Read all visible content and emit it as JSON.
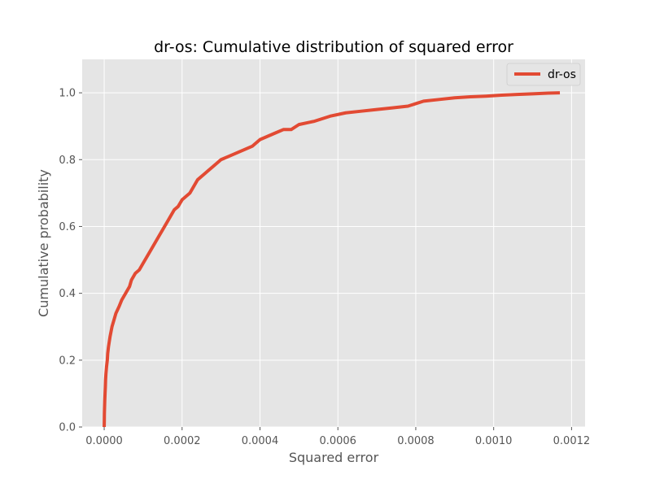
{
  "chart_data": {
    "type": "line",
    "title": "dr-os: Cumulative distribution of squared error",
    "xlabel": "Squared error",
    "ylabel": "Cumulative probability",
    "xlim": [
      -5.65e-05,
      0.0012347
    ],
    "ylim": [
      0.0,
      1.1
    ],
    "x_ticks": [
      "0.0000",
      "0.0002",
      "0.0004",
      "0.0006",
      "0.0008",
      "0.0010",
      "0.0012"
    ],
    "x_tick_values": [
      0.0,
      0.0002,
      0.0004,
      0.0006,
      0.0008,
      0.001,
      0.0012
    ],
    "y_ticks": [
      "0.0",
      "0.2",
      "0.4",
      "0.6",
      "0.8",
      "1.0"
    ],
    "y_tick_values": [
      0.0,
      0.2,
      0.4,
      0.6,
      0.8,
      1.0
    ],
    "grid": true,
    "legend_position": "top-right",
    "series": [
      {
        "name": "dr-os",
        "color": "#e24a33",
        "x": [
          0.0,
          3e-07,
          5e-07,
          1e-06,
          1.5e-06,
          2.2e-06,
          3e-06,
          3.5e-06,
          4.5e-06,
          6e-06,
          8e-06,
          9e-06,
          1.1e-05,
          1.5e-05,
          2e-05,
          2.5e-05,
          3e-05,
          3.8e-05,
          4.5e-05,
          5.5e-05,
          6.5e-05,
          7e-05,
          8e-05,
          9e-05,
          0.0001,
          0.00012,
          0.00014,
          0.00016,
          0.00018,
          0.00019,
          0.0002,
          0.00021,
          0.00022,
          0.00024,
          0.00026,
          0.00028,
          0.0003,
          0.00032,
          0.00034,
          0.00036,
          0.00038,
          0.0004,
          0.00042,
          0.00044,
          0.00046,
          0.00048,
          0.0005,
          0.00054,
          0.00058,
          0.00062,
          0.00066,
          0.0007,
          0.00074,
          0.00078,
          0.00082,
          0.00086,
          0.0009,
          0.00094,
          0.00098,
          0.00102,
          0.00106,
          0.0011,
          0.00114,
          0.00117
        ],
        "y": [
          0.0,
          0.02,
          0.04,
          0.06,
          0.08,
          0.1,
          0.12,
          0.14,
          0.16,
          0.18,
          0.2,
          0.22,
          0.24,
          0.27,
          0.3,
          0.32,
          0.34,
          0.36,
          0.38,
          0.4,
          0.42,
          0.44,
          0.46,
          0.47,
          0.49,
          0.53,
          0.57,
          0.61,
          0.65,
          0.66,
          0.68,
          0.69,
          0.7,
          0.74,
          0.76,
          0.78,
          0.8,
          0.81,
          0.82,
          0.83,
          0.84,
          0.86,
          0.87,
          0.88,
          0.89,
          0.89,
          0.905,
          0.915,
          0.93,
          0.94,
          0.945,
          0.95,
          0.955,
          0.96,
          0.975,
          0.98,
          0.985,
          0.988,
          0.99,
          0.993,
          0.995,
          0.997,
          0.999,
          1.0
        ]
      }
    ]
  }
}
